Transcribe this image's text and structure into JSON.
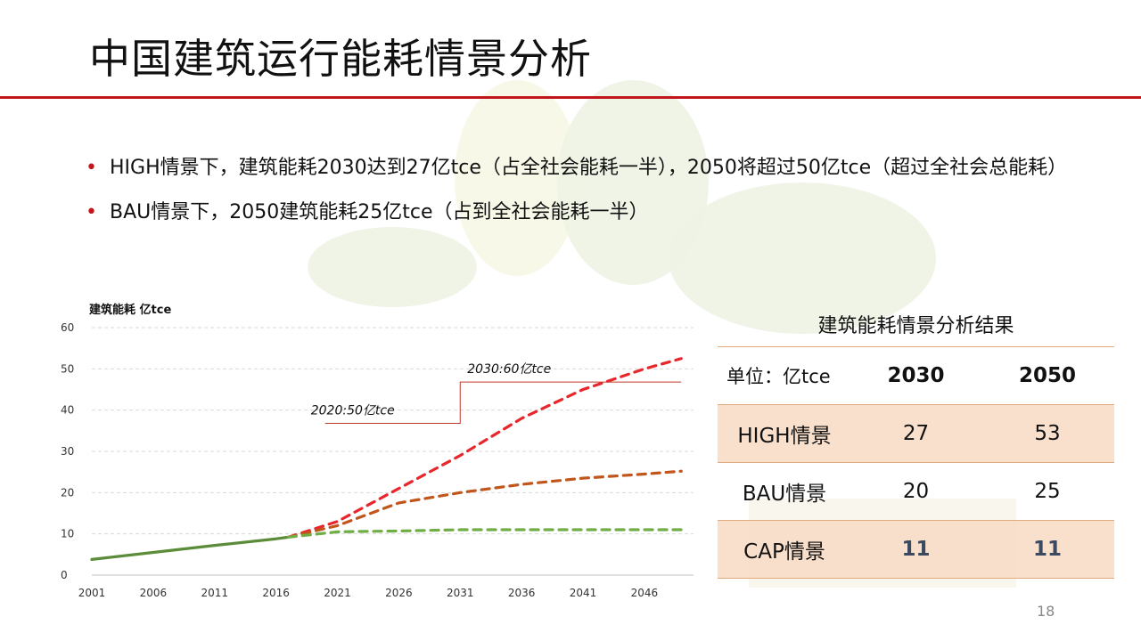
{
  "slide": {
    "title": "中国建筑运行能耗情景分析",
    "page_number": "18",
    "accent_color": "#c0161c",
    "bullets": [
      "HIGH情景下，建筑能耗2030达到27亿tce（占全社会能耗一半），2050将超过50亿tce（超过全社会总能耗）",
      "BAU情景下，2050建筑能耗25亿tce（占到全社会能耗一半）"
    ]
  },
  "table": {
    "caption": "建筑能耗情景分析结果",
    "header": [
      "单位：亿tce",
      "2030",
      "2050"
    ],
    "rows": [
      {
        "label": "HIGH情景",
        "v2030": "27",
        "v2050": "53",
        "shaded": true
      },
      {
        "label": "BAU情景",
        "v2030": "20",
        "v2050": "25",
        "shaded": false
      },
      {
        "label": "CAP情景",
        "v2030": "11",
        "v2050": "11",
        "shaded": true
      }
    ]
  },
  "chart_data": {
    "type": "line",
    "ylabel": "建筑能耗 亿tce",
    "ylim": [
      0,
      60
    ],
    "xlim": [
      2001,
      2050
    ],
    "yticks": [
      0,
      10,
      20,
      30,
      40,
      50,
      60
    ],
    "xticks": [
      2001,
      2006,
      2011,
      2016,
      2021,
      2026,
      2031,
      2036,
      2041,
      2046
    ],
    "grid": "horizontal-dashed",
    "series": [
      {
        "style": "solid",
        "color": "#5b8c3a",
        "x": [
          2001,
          2006,
          2011,
          2016,
          2017
        ],
        "y": [
          3.8,
          5.5,
          7.2,
          8.8,
          9.2
        ]
      },
      {
        "style": "dashed",
        "color": "#e8262c",
        "x": [
          2017,
          2021,
          2026,
          2031,
          2036,
          2041,
          2046,
          2049
        ],
        "y": [
          9.2,
          13,
          21,
          29,
          38,
          45,
          50,
          52.5
        ]
      },
      {
        "style": "dashed",
        "color": "#c0561c",
        "x": [
          2017,
          2021,
          2026,
          2031,
          2036,
          2041,
          2046,
          2049
        ],
        "y": [
          9.2,
          12,
          17.5,
          20,
          22,
          23.5,
          24.5,
          25.2
        ]
      },
      {
        "style": "dashed",
        "color": "#70ad47",
        "x": [
          2017,
          2021,
          2026,
          2031,
          2036,
          2041,
          2046,
          2049
        ],
        "y": [
          9.2,
          10.5,
          10.7,
          11,
          11,
          11,
          11,
          11
        ]
      }
    ],
    "annotations": [
      {
        "text": "2020:50亿tce",
        "x_start": 2020,
        "x_end": 2031,
        "y": 36.8
      },
      {
        "text": "2030:60亿tce",
        "x_start": 2031,
        "x_end": 2049,
        "y": 46.8
      }
    ]
  }
}
